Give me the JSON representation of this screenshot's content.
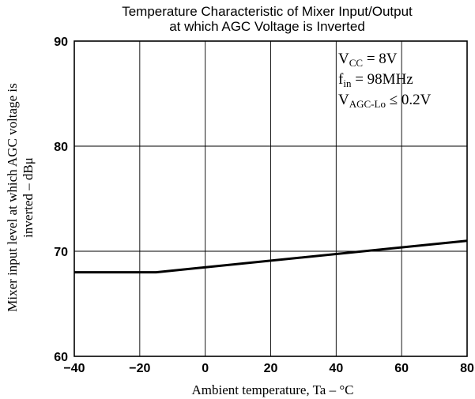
{
  "chart_data": {
    "type": "line",
    "title_line1": "Temperature Characteristic of Mixer Input/Output",
    "title_line2": "at which AGC Voltage is Inverted",
    "xlabel": "Ambient temperature, Ta  –  °C",
    "ylabel_line1": "Mixer input level at which AGC voltage is",
    "ylabel_line2": "inverted  –  dBμ",
    "xlim": [
      -40,
      80
    ],
    "ylim": [
      60,
      90
    ],
    "xticks": [
      -40,
      -20,
      0,
      20,
      40,
      60,
      80
    ],
    "yticks": [
      60,
      70,
      80,
      90
    ],
    "xtick_labels": [
      "−40",
      "−20",
      "0",
      "20",
      "40",
      "60",
      "80"
    ],
    "ytick_labels": [
      "60",
      "70",
      "80",
      "90"
    ],
    "grid": true,
    "series": [
      {
        "x": [
          -40,
          -15,
          80
        ],
        "y": [
          68.0,
          68.0,
          71.0
        ]
      }
    ],
    "conditions": [
      {
        "main": "V",
        "sub": "CC",
        "rest": " = 8V"
      },
      {
        "main": "f",
        "sub": "in",
        "rest": " = 98MHz"
      },
      {
        "main": "V",
        "sub": "AGC-Lo",
        "rest": " ≤ 0.2V"
      }
    ]
  }
}
